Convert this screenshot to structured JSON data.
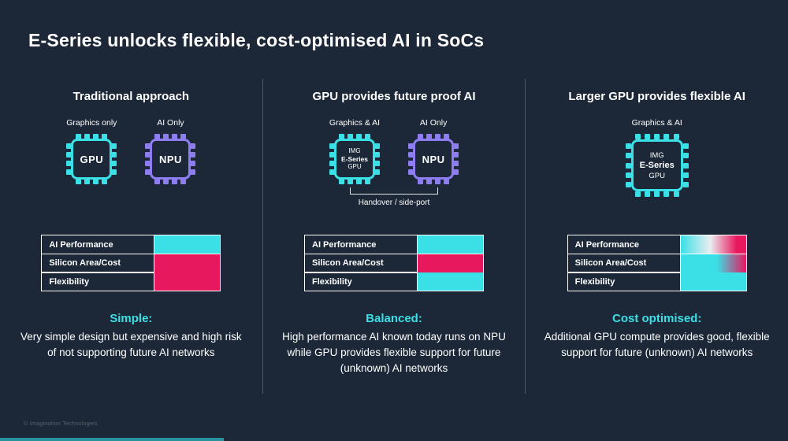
{
  "colors": {
    "background": "#1c2838",
    "cyan": "#3bdfe6",
    "purple": "#8d7df1",
    "pink": "#e8185f",
    "strip": "#2aa6ae"
  },
  "title": "E-Series unlocks flexible, cost-optimised AI in SoCs",
  "footer": {
    "copyright": "© Imagination Technologies"
  },
  "columns": [
    {
      "heading": "Traditional approach",
      "chips": [
        {
          "label": "Graphics only",
          "name": "GPU"
        },
        {
          "label": "AI Only",
          "name": "NPU"
        }
      ],
      "table": [
        {
          "label": "AI Performance",
          "fill": "cyan"
        },
        {
          "label": "Silicon Area/Cost",
          "fill": "pink"
        },
        {
          "label": "Flexibility",
          "fill": "pink"
        }
      ],
      "caption_heading": "Simple:",
      "caption_body": "Very simple design but expensive and high risk of not supporting future AI networks"
    },
    {
      "heading": "GPU provides future proof AI",
      "chips": [
        {
          "label": "Graphics & AI",
          "lines": [
            "IMG",
            "E-Series",
            "GPU"
          ]
        },
        {
          "label": "AI Only",
          "name": "NPU"
        }
      ],
      "connector_label": "Handover / side-port",
      "table": [
        {
          "label": "AI Performance",
          "fill": "cyan"
        },
        {
          "label": "Silicon Area/Cost",
          "fill": "pink"
        },
        {
          "label": "Flexibility",
          "fill": "cyan"
        }
      ],
      "caption_heading": "Balanced:",
      "caption_body": "High performance AI known today runs on NPU while GPU provides flexible support for future (unknown) AI networks"
    },
    {
      "heading": "Larger GPU provides flexible AI",
      "chips": [
        {
          "label": "Graphics & AI",
          "lines": [
            "IMG",
            "E-Series",
            "GPU"
          ]
        }
      ],
      "table": [
        {
          "label": "AI Performance",
          "fill": "grad_strong"
        },
        {
          "label": "Silicon Area/Cost",
          "fill": "grad_soft"
        },
        {
          "label": "Flexibility",
          "fill": "cyan"
        }
      ],
      "caption_heading": "Cost optimised:",
      "caption_body": "Additional GPU compute provides good, flexible support for future (unknown) AI networks"
    }
  ]
}
